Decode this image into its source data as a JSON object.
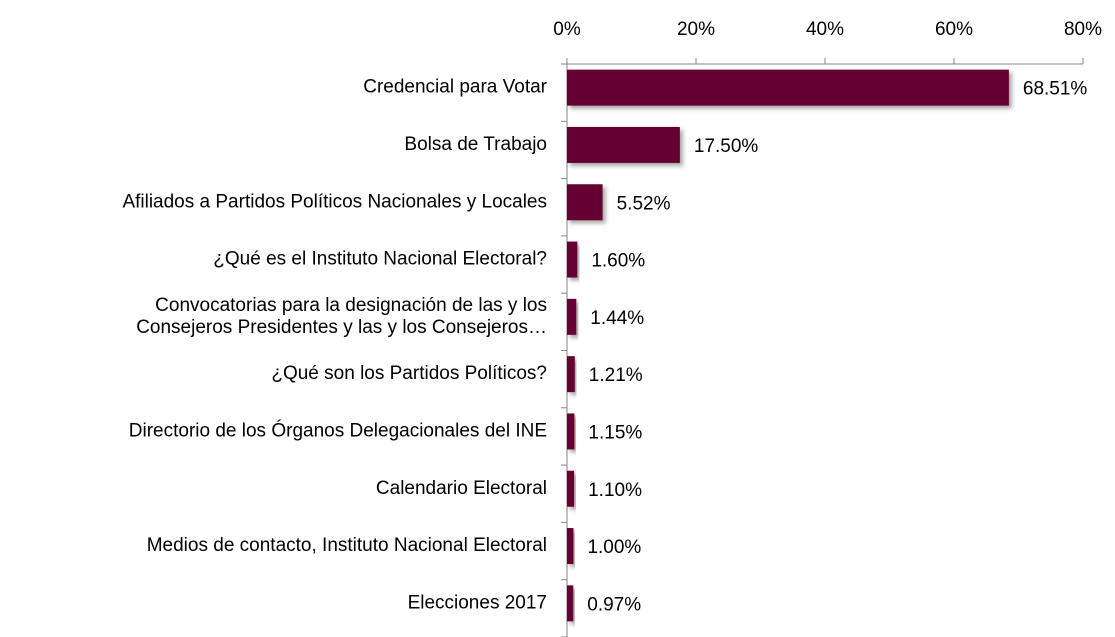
{
  "chart_data": {
    "type": "barh",
    "categories": [
      "Credencial para Votar",
      "Bolsa de Trabajo",
      "Afiliados a Partidos Políticos Nacionales y Locales",
      "¿Qué es el Instituto Nacional Electoral?",
      "Convocatorias para la designación de las y los\nConsejeros Presidentes y las y los Consejeros…",
      "¿Qué son los Partidos Políticos?",
      "Directorio de los Órganos Delegacionales del INE",
      "Calendario Electoral",
      "Medios de contacto, Instituto Nacional Electoral",
      "Elecciones 2017"
    ],
    "values": [
      68.51,
      17.5,
      5.52,
      1.6,
      1.44,
      1.21,
      1.15,
      1.1,
      1.0,
      0.97
    ],
    "value_labels": [
      "68.51%",
      "17.50%",
      "5.52%",
      "1.60%",
      "1.44%",
      "1.21%",
      "1.15%",
      "1.10%",
      "1.00%",
      "0.97%"
    ],
    "color": "#660033",
    "xlim": [
      0,
      80
    ],
    "xticks": [
      {
        "value": 0,
        "label": "0%"
      },
      {
        "value": 20,
        "label": "20%"
      },
      {
        "value": 40,
        "label": "40%"
      },
      {
        "value": 60,
        "label": "60%"
      },
      {
        "value": 80,
        "label": "80%"
      }
    ]
  }
}
